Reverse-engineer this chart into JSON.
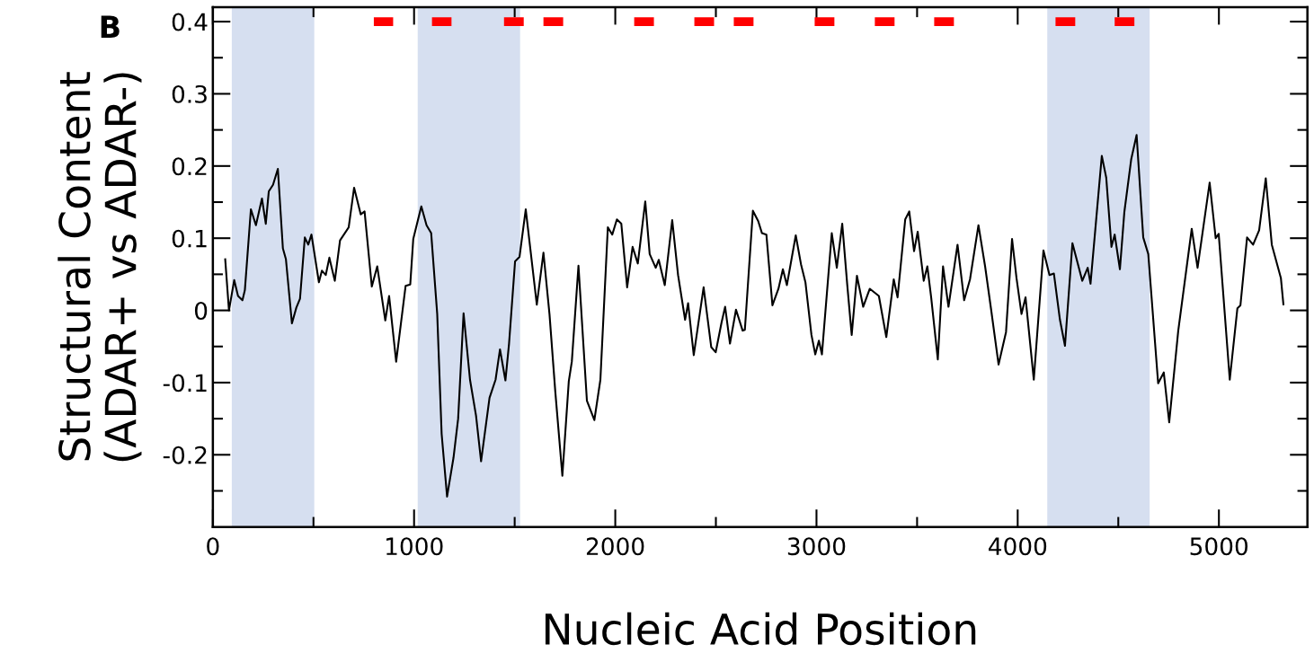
{
  "chart_data": {
    "type": "line",
    "xlabel": "Nucleic Acid Position",
    "ylabel": "Structural Content\n(ADAR+ vs ADAR-)",
    "annotations": [
      "B"
    ],
    "xlim": [
      0,
      5440
    ],
    "ylim": [
      -0.3,
      0.42
    ],
    "xticks": [
      0,
      1000,
      2000,
      3000,
      4000,
      5000
    ],
    "yticks": [
      -0.2,
      -0.1,
      0,
      0.1,
      0.2,
      0.3,
      0.4
    ],
    "grid": false,
    "legend": false,
    "bands": [
      {
        "axis": "x",
        "from": 94,
        "to": 504,
        "color": "#d6dff0"
      },
      {
        "axis": "x",
        "from": 1018,
        "to": 1527,
        "color": "#d6dff0"
      },
      {
        "axis": "x",
        "from": 4147,
        "to": 4656,
        "color": "#d6dff0"
      }
    ],
    "series": [
      {
        "color": "#000000",
        "x": [
          61,
          80,
          106,
          125,
          147,
          159,
          189,
          214,
          244,
          263,
          278,
          299,
          323,
          348,
          363,
          393,
          415,
          433,
          457,
          474,
          490,
          527,
          542,
          561,
          579,
          606,
          632,
          675,
          702,
          735,
          754,
          790,
          817,
          857,
          876,
          911,
          958,
          981,
          996,
          1036,
          1062,
          1085,
          1115,
          1137,
          1164,
          1196,
          1219,
          1246,
          1278,
          1308,
          1333,
          1375,
          1405,
          1427,
          1454,
          1472,
          1502,
          1524,
          1555,
          1610,
          1643,
          1673,
          1702,
          1737,
          1769,
          1784,
          1817,
          1859,
          1896,
          1926,
          1963,
          1985,
          2008,
          2030,
          2059,
          2086,
          2112,
          2149,
          2171,
          2201,
          2216,
          2246,
          2283,
          2312,
          2347,
          2362,
          2390,
          2439,
          2477,
          2499,
          2528,
          2546,
          2570,
          2600,
          2633,
          2644,
          2684,
          2710,
          2729,
          2751,
          2781,
          2811,
          2833,
          2853,
          2897,
          2923,
          2945,
          2975,
          2994,
          3012,
          3027,
          3076,
          3101,
          3128,
          3153,
          3175,
          3201,
          3232,
          3265,
          3310,
          3347,
          3384,
          3403,
          3441,
          3461,
          3485,
          3503,
          3533,
          3551,
          3570,
          3603,
          3629,
          3656,
          3701,
          3734,
          3763,
          3805,
          3838,
          3868,
          3905,
          3942,
          3972,
          3994,
          4019,
          4039,
          4080,
          4128,
          4158,
          4180,
          4210,
          4235,
          4272,
          4321,
          4348,
          4362,
          4418,
          4440,
          4466,
          4482,
          4508,
          4530,
          4564,
          4591,
          4624,
          4649,
          4698,
          4726,
          4753,
          4798,
          4865,
          4894,
          4954,
          4984,
          4999,
          5054,
          5092,
          5107,
          5140,
          5170,
          5200,
          5233,
          5263,
          5308,
          5321
        ],
        "values": [
          0.072,
          0.0,
          0.042,
          0.02,
          0.014,
          0.028,
          0.14,
          0.118,
          0.155,
          0.12,
          0.165,
          0.174,
          0.196,
          0.086,
          0.071,
          -0.018,
          0.004,
          0.016,
          0.101,
          0.091,
          0.105,
          0.039,
          0.055,
          0.049,
          0.073,
          0.041,
          0.097,
          0.115,
          0.17,
          0.133,
          0.137,
          0.033,
          0.061,
          -0.014,
          0.02,
          -0.071,
          0.034,
          0.036,
          0.099,
          0.144,
          0.118,
          0.107,
          -0.005,
          -0.171,
          -0.258,
          -0.204,
          -0.15,
          -0.004,
          -0.096,
          -0.146,
          -0.209,
          -0.121,
          -0.096,
          -0.054,
          -0.097,
          -0.046,
          0.068,
          0.074,
          0.14,
          0.008,
          0.08,
          -0.005,
          -0.113,
          -0.229,
          -0.098,
          -0.071,
          0.062,
          -0.125,
          -0.152,
          -0.096,
          0.115,
          0.105,
          0.126,
          0.12,
          0.032,
          0.088,
          0.065,
          0.151,
          0.078,
          0.059,
          0.07,
          0.035,
          0.125,
          0.049,
          -0.013,
          0.01,
          -0.062,
          0.032,
          -0.051,
          -0.058,
          -0.017,
          0.005,
          -0.046,
          0.001,
          -0.028,
          -0.027,
          0.138,
          0.124,
          0.107,
          0.105,
          0.007,
          0.03,
          0.057,
          0.035,
          0.104,
          0.064,
          0.039,
          -0.034,
          -0.061,
          -0.042,
          -0.061,
          0.107,
          0.059,
          0.12,
          0.035,
          -0.034,
          0.048,
          0.005,
          0.03,
          0.02,
          -0.037,
          0.043,
          0.018,
          0.126,
          0.137,
          0.082,
          0.109,
          0.041,
          0.061,
          0.018,
          -0.068,
          0.061,
          0.005,
          0.091,
          0.014,
          0.043,
          0.118,
          0.061,
          0.001,
          -0.075,
          -0.03,
          0.099,
          0.045,
          -0.005,
          0.018,
          -0.096,
          0.083,
          0.049,
          0.051,
          -0.013,
          -0.049,
          0.093,
          0.041,
          0.059,
          0.037,
          0.214,
          0.184,
          0.088,
          0.105,
          0.057,
          0.136,
          0.209,
          0.243,
          0.101,
          0.078,
          -0.101,
          -0.086,
          -0.155,
          -0.028,
          0.113,
          0.059,
          0.177,
          0.1,
          0.106,
          -0.096,
          0.003,
          0.007,
          0.101,
          0.091,
          0.111,
          0.183,
          0.091,
          0.045,
          0.007
        ]
      },
      {
        "color": "#ff0000",
        "x": [
          800,
          896,
          897,
          1089,
          1186,
          1187,
          1447,
          1545,
          1546,
          1643,
          1741,
          1742,
          2094,
          2192,
          2193,
          2393,
          2491,
          2492,
          2589,
          2687,
          2688,
          2991,
          3089,
          3090,
          3290,
          3388,
          3389,
          3585,
          3683,
          3684,
          4188,
          4286,
          4287,
          4482,
          4580
        ],
        "values": [
          0.4,
          0.4,
          null,
          0.4,
          0.4,
          null,
          0.4,
          0.4,
          null,
          0.4,
          0.4,
          null,
          0.4,
          0.4,
          null,
          0.4,
          0.4,
          null,
          0.4,
          0.4,
          null,
          0.4,
          0.4,
          null,
          0.4,
          0.4,
          null,
          0.4,
          0.4,
          null,
          0.4,
          0.4,
          null,
          0.4,
          0.4
        ]
      }
    ]
  }
}
